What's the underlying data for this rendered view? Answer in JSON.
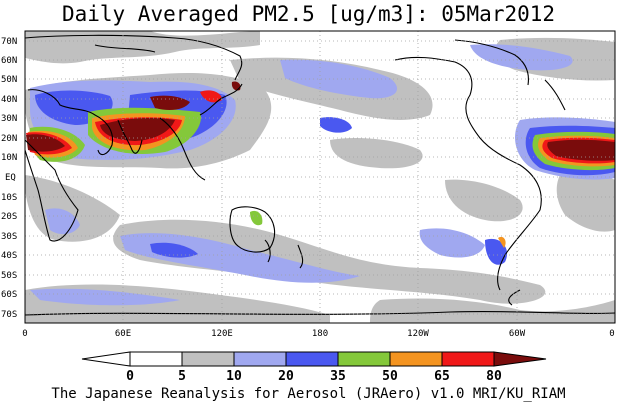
{
  "title": "Daily Averaged PM2.5 [ug/m3]: 05Mar2012",
  "footer": "The Japanese Reanalysis for Aerosol (JRAero) v1.0 MRI/KU_RIAM",
  "lat_labels": [
    "70N",
    "60N",
    "50N",
    "40N",
    "30N",
    "20N",
    "10N",
    "EQ",
    "10S",
    "20S",
    "30S",
    "40S",
    "50S",
    "60S",
    "70S"
  ],
  "lon_labels": [
    "0",
    "60E",
    "120E",
    "180",
    "120W",
    "60W",
    "0"
  ],
  "colorbar": {
    "ticks": [
      "0",
      "5",
      "10",
      "20",
      "35",
      "50",
      "65",
      "80"
    ],
    "colors": [
      "#ffffff",
      "#ffffff",
      "#c0c0c0",
      "#a0a8f0",
      "#4a58f0",
      "#84c83a",
      "#f49420",
      "#f01818",
      "#7a0c0c"
    ]
  },
  "legend_colors": {
    "low": "#c0c0c0",
    "light_blue": "#a0a8f0",
    "blue": "#4a58f0",
    "green": "#84c83a",
    "orange": "#f49420",
    "red": "#f01818",
    "dark_red": "#7a0c0c"
  }
}
